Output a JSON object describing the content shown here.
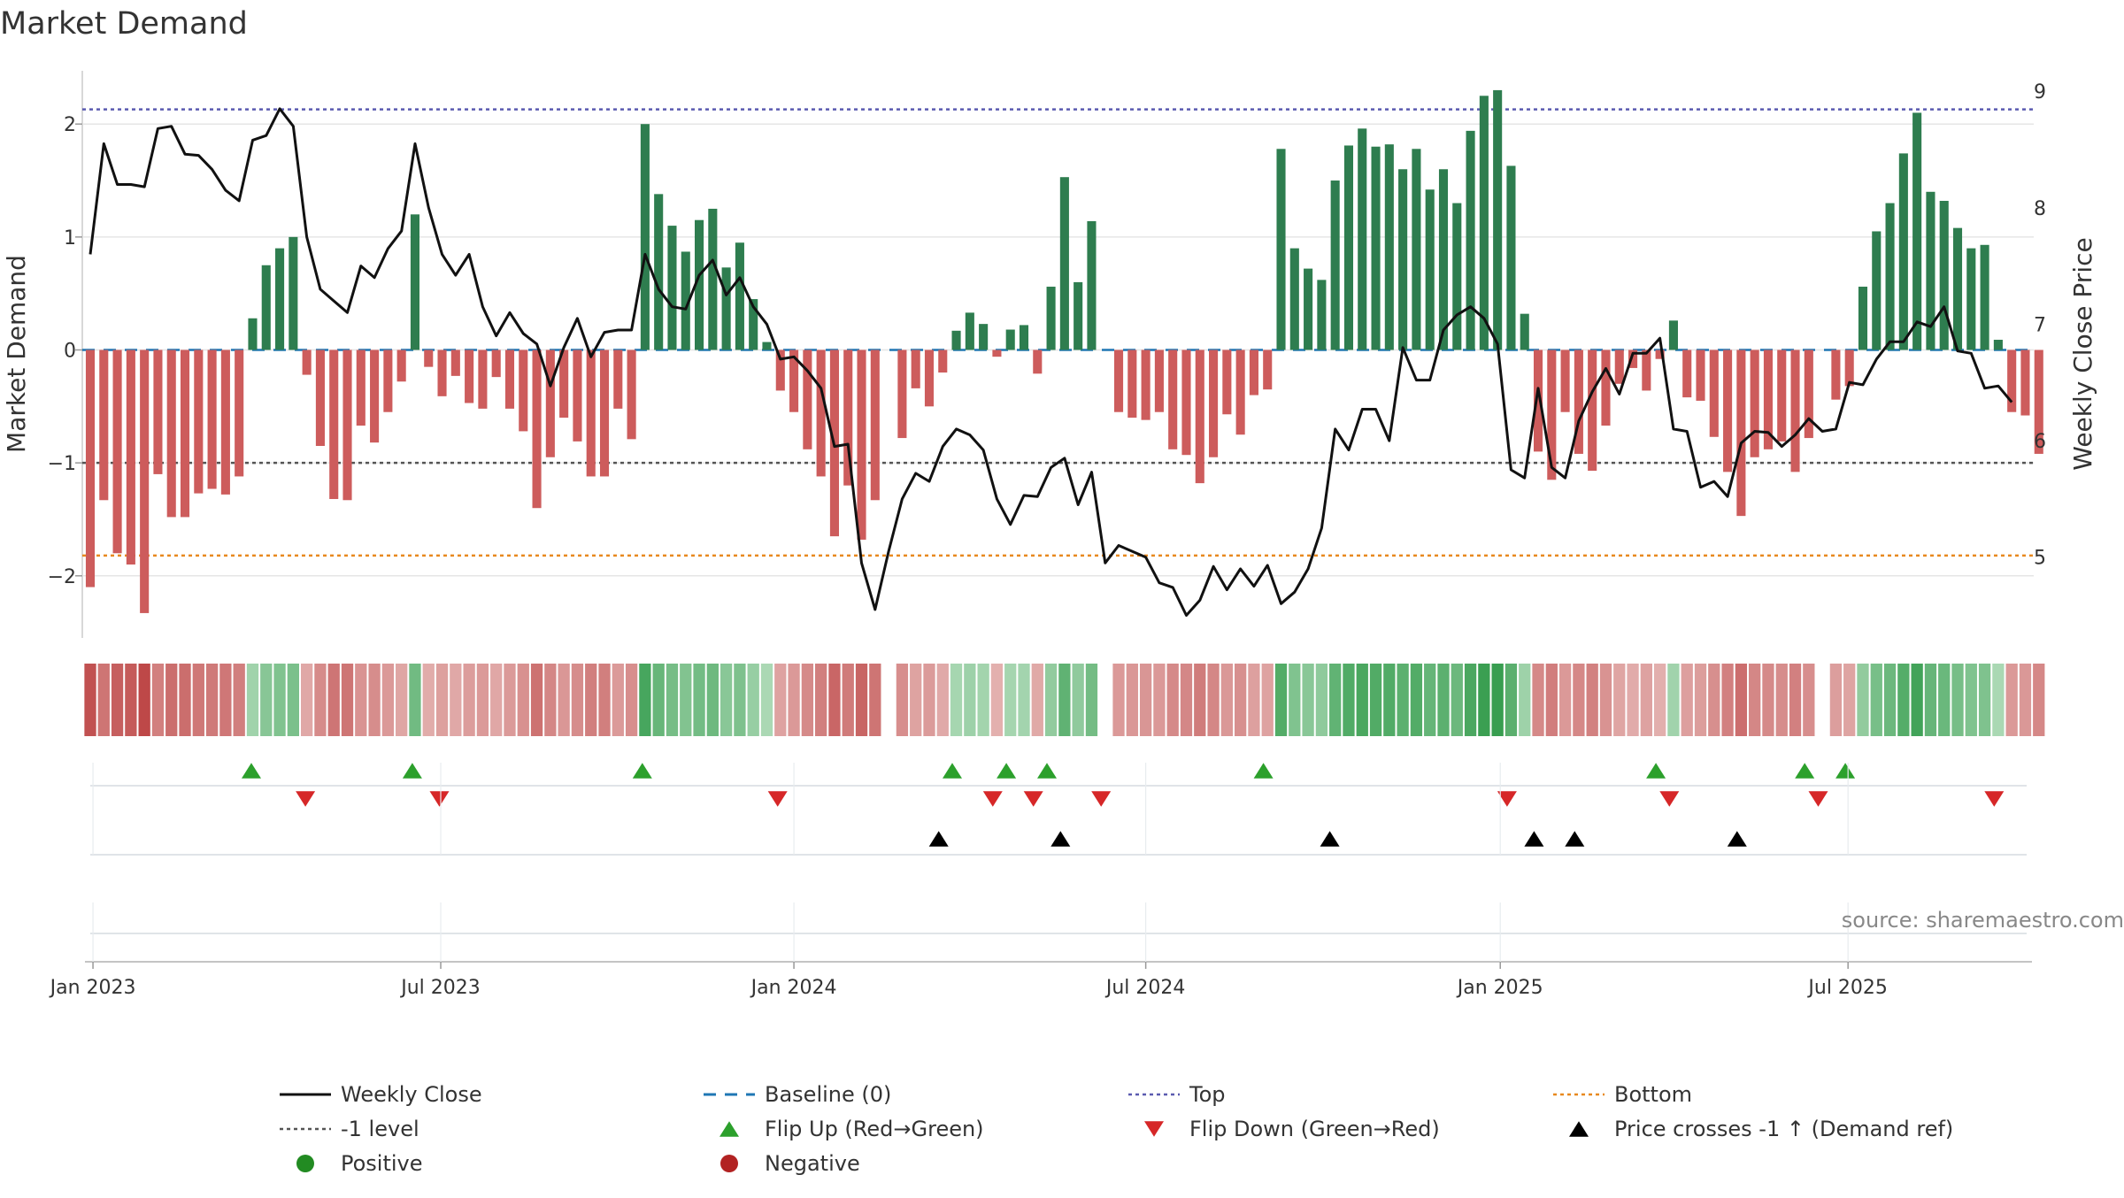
{
  "chart_data": {
    "type": "bar+line",
    "title": "Market Demand",
    "ylabel_left": "Market Demand",
    "ylabel_right": "Weekly Close Price",
    "left_ylim": [
      -2.55,
      2.55
    ],
    "left_yticks": [
      -2,
      -1,
      0,
      1,
      2
    ],
    "left_ytick_labels": [
      "−2",
      "−1",
      "0",
      "1",
      "2"
    ],
    "right_ylim": [
      4.2,
      9.1
    ],
    "right_yticks": [
      5,
      6,
      7,
      8,
      9
    ],
    "right_ytick_labels": [
      "5",
      "6",
      "7",
      "8",
      "9"
    ],
    "x_tick_labels": [
      "Jan 2023",
      "Jul 2023",
      "Jan 2024",
      "Jul 2024",
      "Jan 2025",
      "Jul 2025"
    ],
    "x_tick_weeks": [
      0.2,
      25.9,
      52,
      78,
      104.2,
      129.9
    ],
    "reference_levels": {
      "top": 2.13,
      "bottom": -1.82,
      "minus_one": -1.0,
      "baseline": 0
    },
    "weekly_demand": [
      -2.1,
      -1.33,
      -1.8,
      -1.9,
      -2.33,
      -1.1,
      -1.48,
      -1.48,
      -1.27,
      -1.23,
      -1.28,
      -1.12,
      0.28,
      0.75,
      0.9,
      1.0,
      -0.22,
      -0.85,
      -1.32,
      -1.33,
      -0.67,
      -0.82,
      -0.55,
      -0.28,
      1.2,
      -0.15,
      -0.41,
      -0.23,
      -0.47,
      -0.52,
      -0.24,
      -0.52,
      -0.72,
      -1.4,
      -0.95,
      -0.6,
      -0.81,
      -1.12,
      -1.12,
      -0.52,
      -0.79,
      2.0,
      1.38,
      1.1,
      0.87,
      1.15,
      1.25,
      0.73,
      0.95,
      0.45,
      0.07,
      -0.36,
      -0.55,
      -0.88,
      -1.12,
      -1.65,
      -1.2,
      -1.68,
      -1.33,
      0,
      -0.78,
      -0.34,
      -0.5,
      -0.2,
      0.17,
      0.33,
      0.23,
      -0.06,
      0.18,
      0.22,
      -0.21,
      0.56,
      1.53,
      0.6,
      1.14,
      0,
      -0.55,
      -0.6,
      -0.62,
      -0.55,
      -0.88,
      -0.93,
      -1.18,
      -0.95,
      -0.57,
      -0.75,
      -0.4,
      -0.35,
      1.78,
      0.9,
      0.72,
      0.62,
      1.5,
      1.81,
      1.96,
      1.8,
      1.82,
      1.6,
      1.78,
      1.42,
      1.6,
      1.3,
      1.94,
      2.25,
      2.3,
      1.63,
      0.32,
      -0.9,
      -1.15,
      -0.55,
      -0.92,
      -1.07,
      -0.67,
      -0.3,
      -0.16,
      -0.36,
      -0.08,
      0.26,
      -0.42,
      -0.45,
      -0.77,
      -1.08,
      -1.47,
      -0.95,
      -0.88,
      -0.81,
      -1.08,
      -0.78,
      0,
      -0.44,
      -0.32,
      0.56,
      1.05,
      1.3,
      1.74,
      2.1,
      1.4,
      1.32,
      1.08,
      0.9,
      0.93,
      0.09,
      -0.55,
      -0.58,
      -0.92
    ],
    "weekly_close": [
      7.6,
      8.55,
      8.2,
      8.2,
      8.18,
      8.68,
      8.7,
      8.46,
      8.45,
      8.33,
      8.15,
      8.06,
      8.58,
      8.62,
      8.85,
      8.7,
      7.75,
      7.3,
      7.2,
      7.1,
      7.5,
      7.4,
      7.65,
      7.8,
      8.55,
      8.0,
      7.6,
      7.42,
      7.6,
      7.15,
      6.9,
      7.1,
      6.92,
      6.83,
      6.47,
      6.8,
      7.05,
      6.72,
      6.93,
      6.95,
      6.95,
      7.6,
      7.3,
      7.15,
      7.13,
      7.42,
      7.55,
      7.25,
      7.4,
      7.15,
      7.0,
      6.7,
      6.72,
      6.6,
      6.45,
      5.95,
      5.97,
      4.95,
      4.55,
      5.05,
      5.5,
      5.72,
      5.65,
      5.95,
      6.1,
      6.05,
      5.92,
      5.5,
      5.28,
      5.53,
      5.52,
      5.77,
      5.85,
      5.45,
      5.73,
      4.95,
      5.1,
      5.05,
      5.0,
      4.78,
      4.74,
      4.5,
      4.63,
      4.92,
      4.72,
      4.9,
      4.75,
      4.93,
      4.6,
      4.7,
      4.9,
      5.25,
      6.1,
      5.92,
      6.27,
      6.27,
      6.0,
      6.8,
      6.52,
      6.52,
      6.95,
      7.08,
      7.15,
      7.05,
      6.83,
      5.75,
      5.68,
      6.45,
      5.77,
      5.68,
      6.17,
      6.42,
      6.62,
      6.4,
      6.75,
      6.75,
      6.88,
      6.1,
      6.08,
      5.6,
      5.65,
      5.52,
      5.98,
      6.08,
      6.07,
      5.95,
      6.05,
      6.19,
      6.08,
      6.1,
      6.5,
      6.48,
      6.7,
      6.85,
      6.85,
      7.02,
      6.98,
      7.15,
      6.77,
      6.75,
      6.45,
      6.47,
      6.33
    ],
    "flip_up_weeks": [
      11.9,
      23.8,
      40.8,
      63.7,
      67.7,
      70.7,
      86.7,
      115.7,
      126.7,
      129.7
    ],
    "flip_down_weeks": [
      15.9,
      25.8,
      50.8,
      66.7,
      69.7,
      74.7,
      104.7,
      116.7,
      127.7,
      140.7
    ],
    "price_cross_weeks": [
      62.7,
      71.7,
      91.6,
      106.7,
      109.7,
      121.7
    ],
    "legend": [
      {
        "label": "Weekly Close",
        "kind": "line",
        "color": "#111111"
      },
      {
        "label": "Baseline (0)",
        "kind": "dash",
        "color": "#1f77b4"
      },
      {
        "label": "Top",
        "kind": "dot",
        "color": "#5b5bb0"
      },
      {
        "label": "Bottom",
        "kind": "dot",
        "color": "#e8891f"
      },
      {
        "label": "-1 level",
        "kind": "dot",
        "color": "#555555"
      },
      {
        "label": "Flip Up (Red→Green)",
        "kind": "tri-up",
        "color": "#2ca02c"
      },
      {
        "label": "Flip Down (Green→Red)",
        "kind": "tri-down",
        "color": "#d62728"
      },
      {
        "label": "Price crosses -1 ↑ (Demand ref)",
        "kind": "tri-up",
        "color": "#000000"
      },
      {
        "label": "Positive",
        "kind": "circle",
        "color": "#228b22"
      },
      {
        "label": "Negative",
        "kind": "circle",
        "color": "#b22222"
      }
    ],
    "source_note": "source: sharemaestro.com"
  },
  "colors": {
    "positive_bar": "#2e7d4f",
    "negative_bar": "#cd5c5c",
    "close_line": "#111111",
    "baseline": "#1f77b4",
    "top": "#5b5bb0",
    "bottom": "#e8891f",
    "minus_one": "#555555",
    "flip_up": "#2ca02c",
    "flip_down": "#d62728",
    "cross": "#000000",
    "grid": "#e6e6e6",
    "axis_line": "#cccccc"
  }
}
